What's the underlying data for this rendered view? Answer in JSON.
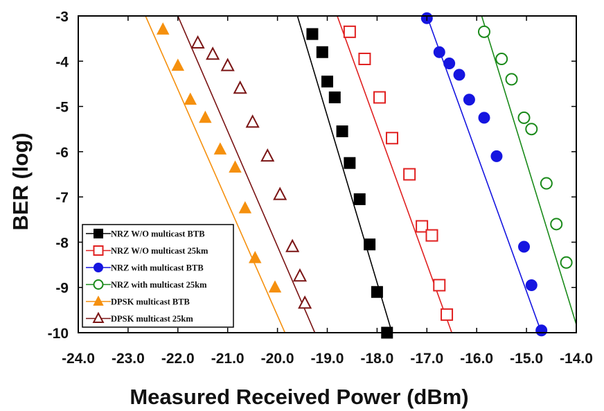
{
  "chart_data": {
    "type": "line",
    "title": "",
    "xlabel": "Measured Received Power (dBm)",
    "ylabel": "BER (log)",
    "xlim": [
      -24.0,
      -14.0
    ],
    "ylim": [
      -10,
      -3
    ],
    "x_ticks": [
      -24.0,
      -23.0,
      -22.0,
      -21.0,
      -20.0,
      -19.0,
      -18.0,
      -17.0,
      -16.0,
      -15.0,
      -14.0
    ],
    "x_tick_labels": [
      "-24.0",
      "-23.0",
      "-22.0",
      "-21.0",
      "-20.0",
      "-19.0",
      "-18.0",
      "-17.0",
      "-16.0",
      "-15.0",
      "-14.0"
    ],
    "y_ticks": [
      -3,
      -4,
      -5,
      -6,
      -7,
      -8,
      -9,
      -10
    ],
    "y_tick_labels": [
      "-3",
      "-4",
      "-5",
      "-6",
      "-7",
      "-8",
      "-9",
      "-10"
    ],
    "legend_position": "bottom-left",
    "series": [
      {
        "name": "NRZ W/O multicast BTB",
        "color": "#000000",
        "marker": "square-filled",
        "x": [
          -19.3,
          -19.1,
          -19.0,
          -18.85,
          -18.7,
          -18.55,
          -18.35,
          -18.15,
          -18.0,
          -17.8
        ],
        "y": [
          -3.4,
          -3.8,
          -4.45,
          -4.8,
          -5.55,
          -6.25,
          -7.05,
          -8.05,
          -9.1,
          -10.0
        ],
        "fit_x": [
          -19.6,
          -17.7
        ],
        "fit_y": [
          -3.0,
          -10.0
        ]
      },
      {
        "name": "NRZ W/O multicast 25km",
        "color": "#e02020",
        "marker": "square-open",
        "x": [
          -18.55,
          -18.25,
          -17.95,
          -17.7,
          -17.35,
          -17.1,
          -16.9,
          -16.75,
          -16.6
        ],
        "y": [
          -3.35,
          -3.95,
          -4.8,
          -5.7,
          -6.5,
          -7.65,
          -7.85,
          -8.95,
          -9.6
        ],
        "fit_x": [
          -18.8,
          -16.5
        ],
        "fit_y": [
          -3.0,
          -10.0
        ]
      },
      {
        "name": "NRZ with multicast BTB",
        "color": "#1515e0",
        "marker": "circle-filled",
        "x": [
          -17.0,
          -16.75,
          -16.55,
          -16.35,
          -16.15,
          -15.85,
          -15.6,
          -15.05,
          -14.9,
          -14.7
        ],
        "y": [
          -3.05,
          -3.8,
          -4.05,
          -4.3,
          -4.85,
          -5.25,
          -6.1,
          -8.1,
          -8.95,
          -9.95
        ],
        "fit_x": [
          -17.0,
          -14.7
        ],
        "fit_y": [
          -3.0,
          -10.0
        ]
      },
      {
        "name": "NRZ with multicast 25km",
        "color": "#1a8a1a",
        "marker": "circle-open",
        "x": [
          -15.85,
          -15.5,
          -15.3,
          -15.05,
          -14.9,
          -14.6,
          -14.4,
          -14.2
        ],
        "y": [
          -3.35,
          -3.95,
          -4.4,
          -5.25,
          -5.5,
          -6.7,
          -7.6,
          -8.45
        ],
        "fit_x": [
          -15.9,
          -13.95
        ],
        "fit_y": [
          -3.0,
          -10.0
        ]
      },
      {
        "name": "DPSK multicast BTB",
        "color": "#f5900e",
        "marker": "triangle-filled",
        "x": [
          -22.3,
          -22.0,
          -21.75,
          -21.45,
          -21.15,
          -20.85,
          -20.65,
          -20.45,
          -20.05
        ],
        "y": [
          -3.3,
          -4.1,
          -4.85,
          -5.25,
          -5.95,
          -6.35,
          -7.25,
          -8.35,
          -9.0
        ],
        "fit_x": [
          -22.65,
          -19.85
        ],
        "fit_y": [
          -3.0,
          -10.0
        ]
      },
      {
        "name": "DPSK multicast 25km",
        "color": "#7a1414",
        "marker": "triangle-open",
        "x": [
          -21.6,
          -21.3,
          -21.0,
          -20.75,
          -20.5,
          -20.2,
          -19.95,
          -19.7,
          -19.55,
          -19.45
        ],
        "y": [
          -3.6,
          -3.85,
          -4.1,
          -4.6,
          -5.35,
          -6.1,
          -6.95,
          -8.1,
          -8.75,
          -9.35
        ],
        "fit_x": [
          -22.0,
          -19.25
        ],
        "fit_y": [
          -3.0,
          -10.0
        ]
      }
    ]
  }
}
